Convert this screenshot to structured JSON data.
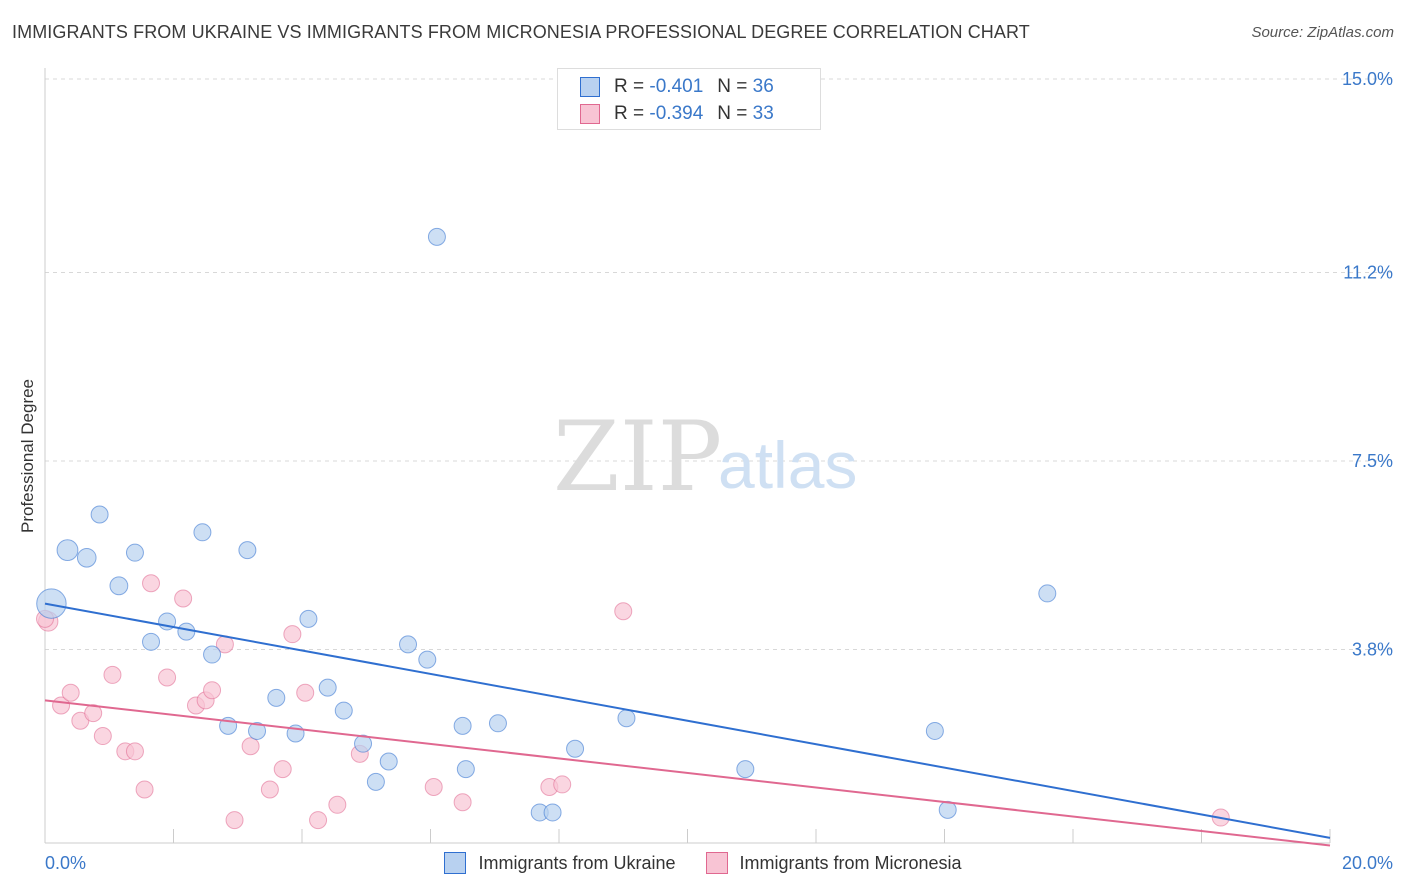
{
  "header": {
    "title": "IMMIGRANTS FROM UKRAINE VS IMMIGRANTS FROM MICRONESIA PROFESSIONAL DEGREE CORRELATION CHART",
    "source": "Source: ZipAtlas.com"
  },
  "watermark": {
    "part1": "ZIP",
    "part2": "atlas"
  },
  "legend": {
    "r_label": "R =",
    "n_label": "N =",
    "ukraine": {
      "r": "-0.401",
      "n": "36"
    },
    "micronesia": {
      "r": "-0.394",
      "n": "33"
    }
  },
  "colors": {
    "ukraine_fill": "#b8d1f0",
    "ukraine_line": "#2f6fd0",
    "micronesia_fill": "#f8c4d4",
    "micronesia_line": "#e06890",
    "tick_label": "#3a78c9"
  },
  "chart_data": {
    "type": "scatter",
    "title": "IMMIGRANTS FROM UKRAINE VS IMMIGRANTS FROM MICRONESIA PROFESSIONAL DEGREE CORRELATION CHART",
    "xlabel": "",
    "ylabel": "Professional Degree",
    "xlim": [
      0,
      20
    ],
    "ylim": [
      0,
      15.0
    ],
    "x_tick_labels": [
      "0.0%",
      "20.0%"
    ],
    "y_ticks": [
      3.8,
      7.5,
      11.2,
      15.0
    ],
    "y_tick_labels": [
      "3.8%",
      "7.5%",
      "11.2%",
      "15.0%"
    ],
    "grid": true,
    "legend_position": "top-center",
    "series": [
      {
        "name": "Immigrants from Ukraine",
        "r": -0.401,
        "n": 36,
        "trend": {
          "x": [
            0,
            20
          ],
          "y": [
            4.7,
            0.1
          ]
        },
        "points": [
          {
            "x": 0.1,
            "y": 4.7,
            "s": 3
          },
          {
            "x": 0.35,
            "y": 5.75,
            "s": 1.5
          },
          {
            "x": 0.65,
            "y": 5.6,
            "s": 1.2
          },
          {
            "x": 0.85,
            "y": 6.45,
            "s": 1
          },
          {
            "x": 1.15,
            "y": 5.05,
            "s": 1.1
          },
          {
            "x": 1.4,
            "y": 5.7,
            "s": 1
          },
          {
            "x": 1.65,
            "y": 3.95,
            "s": 1
          },
          {
            "x": 1.9,
            "y": 4.35,
            "s": 1
          },
          {
            "x": 2.2,
            "y": 4.15,
            "s": 1
          },
          {
            "x": 2.45,
            "y": 6.1,
            "s": 1
          },
          {
            "x": 2.6,
            "y": 3.7,
            "s": 1
          },
          {
            "x": 2.85,
            "y": 2.3,
            "s": 1
          },
          {
            "x": 3.15,
            "y": 5.75,
            "s": 1
          },
          {
            "x": 3.3,
            "y": 2.2,
            "s": 1
          },
          {
            "x": 3.6,
            "y": 2.85,
            "s": 1
          },
          {
            "x": 3.9,
            "y": 2.15,
            "s": 1
          },
          {
            "x": 4.1,
            "y": 4.4,
            "s": 1
          },
          {
            "x": 4.4,
            "y": 3.05,
            "s": 1
          },
          {
            "x": 4.65,
            "y": 2.6,
            "s": 1
          },
          {
            "x": 4.95,
            "y": 1.95,
            "s": 1
          },
          {
            "x": 5.15,
            "y": 1.2,
            "s": 1
          },
          {
            "x": 5.35,
            "y": 1.6,
            "s": 1
          },
          {
            "x": 5.65,
            "y": 3.9,
            "s": 1
          },
          {
            "x": 5.95,
            "y": 3.6,
            "s": 1
          },
          {
            "x": 6.1,
            "y": 11.9,
            "s": 1
          },
          {
            "x": 6.5,
            "y": 2.3,
            "s": 1
          },
          {
            "x": 6.55,
            "y": 1.45,
            "s": 1
          },
          {
            "x": 7.05,
            "y": 2.35,
            "s": 1
          },
          {
            "x": 7.7,
            "y": 0.6,
            "s": 1
          },
          {
            "x": 7.9,
            "y": 0.6,
            "s": 1
          },
          {
            "x": 8.25,
            "y": 1.85,
            "s": 1
          },
          {
            "x": 9.05,
            "y": 2.45,
            "s": 1
          },
          {
            "x": 10.9,
            "y": 1.45,
            "s": 1
          },
          {
            "x": 13.85,
            "y": 2.2,
            "s": 1
          },
          {
            "x": 14.05,
            "y": 0.65,
            "s": 1
          },
          {
            "x": 15.6,
            "y": 4.9,
            "s": 1
          }
        ]
      },
      {
        "name": "Immigrants from Micronesia",
        "r": -0.394,
        "n": 33,
        "trend": {
          "x": [
            0,
            20
          ],
          "y": [
            2.8,
            -0.05
          ]
        },
        "points": [
          {
            "x": 0.05,
            "y": 4.35,
            "s": 1.3
          },
          {
            "x": 0.25,
            "y": 2.7,
            "s": 1
          },
          {
            "x": 0.4,
            "y": 2.95,
            "s": 1
          },
          {
            "x": 0.55,
            "y": 2.4,
            "s": 1
          },
          {
            "x": 0.75,
            "y": 2.55,
            "s": 1
          },
          {
            "x": 0.9,
            "y": 2.1,
            "s": 1
          },
          {
            "x": 1.05,
            "y": 3.3,
            "s": 1
          },
          {
            "x": 1.25,
            "y": 1.8,
            "s": 1
          },
          {
            "x": 1.4,
            "y": 1.8,
            "s": 1
          },
          {
            "x": 1.55,
            "y": 1.05,
            "s": 1
          },
          {
            "x": 1.65,
            "y": 5.1,
            "s": 1
          },
          {
            "x": 1.9,
            "y": 3.25,
            "s": 1
          },
          {
            "x": 2.15,
            "y": 4.8,
            "s": 1
          },
          {
            "x": 2.35,
            "y": 2.7,
            "s": 1
          },
          {
            "x": 2.5,
            "y": 2.8,
            "s": 1
          },
          {
            "x": 2.6,
            "y": 3.0,
            "s": 1
          },
          {
            "x": 2.8,
            "y": 3.9,
            "s": 1
          },
          {
            "x": 2.95,
            "y": 0.45,
            "s": 1
          },
          {
            "x": 3.2,
            "y": 1.9,
            "s": 1
          },
          {
            "x": 3.5,
            "y": 1.05,
            "s": 1
          },
          {
            "x": 3.7,
            "y": 1.45,
            "s": 1
          },
          {
            "x": 3.85,
            "y": 4.1,
            "s": 1
          },
          {
            "x": 4.05,
            "y": 2.95,
            "s": 1
          },
          {
            "x": 4.25,
            "y": 0.45,
            "s": 1
          },
          {
            "x": 4.55,
            "y": 0.75,
            "s": 1
          },
          {
            "x": 4.9,
            "y": 1.75,
            "s": 1
          },
          {
            "x": 6.05,
            "y": 1.1,
            "s": 1
          },
          {
            "x": 6.5,
            "y": 0.8,
            "s": 1
          },
          {
            "x": 7.85,
            "y": 1.1,
            "s": 1
          },
          {
            "x": 8.05,
            "y": 1.15,
            "s": 1
          },
          {
            "x": 9.0,
            "y": 4.55,
            "s": 1
          },
          {
            "x": 18.3,
            "y": 0.5,
            "s": 1
          },
          {
            "x": 0.0,
            "y": 4.4,
            "s": 1
          }
        ]
      }
    ]
  }
}
